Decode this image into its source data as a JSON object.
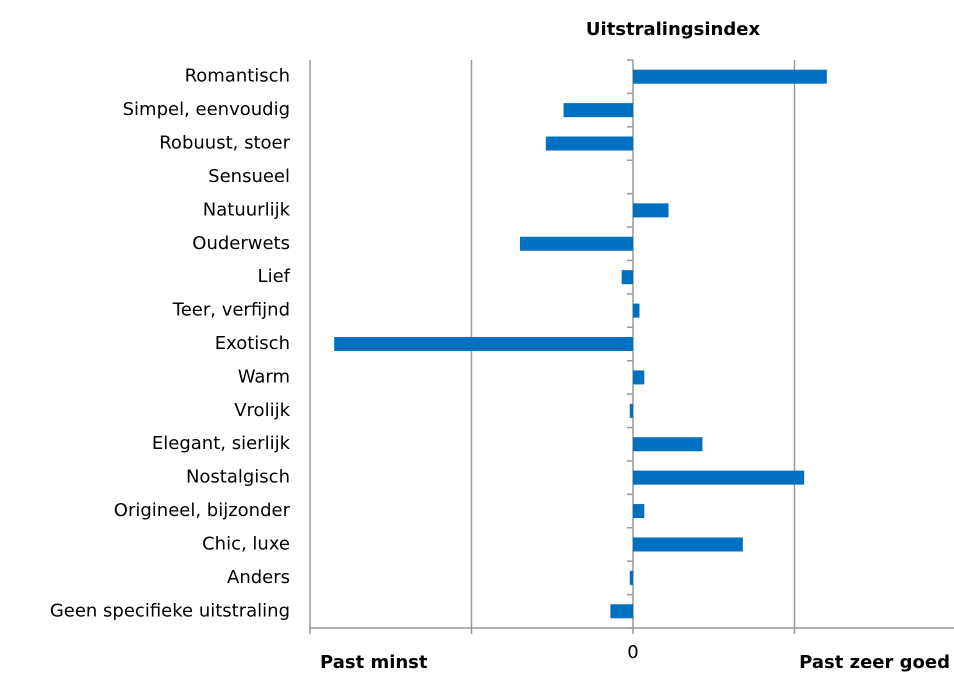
{
  "chart_data": {
    "type": "barh",
    "title": "Uitstralingsindex",
    "categories": [
      "Romantisch",
      "Simpel, eenvoudig",
      "Robuust, stoer",
      "Sensueel",
      "Natuurlijk",
      "Ouderwets",
      "Lief",
      "Teer, verfijnd",
      "Exotisch",
      "Warm",
      "Vrolijk",
      "Elegant, sierlijk",
      "Nostalgisch",
      "Origineel, bijzonder",
      "Chic, luxe",
      "Anders",
      "Geen specifieke uitstraling"
    ],
    "values": [
      1.2,
      -0.43,
      -0.54,
      0,
      0.22,
      -0.7,
      -0.07,
      0.04,
      -1.85,
      0.07,
      -0.02,
      0.43,
      1.06,
      0.07,
      0.68,
      -0.02,
      -0.14
    ],
    "color": "#0070c0",
    "xlim": [
      -2,
      2
    ],
    "xticks": [
      0
    ],
    "gridlines": [
      -2,
      -1,
      1
    ],
    "grid": true,
    "x_label_left": "Past minst",
    "x_label_right": "Past zeer goed"
  }
}
